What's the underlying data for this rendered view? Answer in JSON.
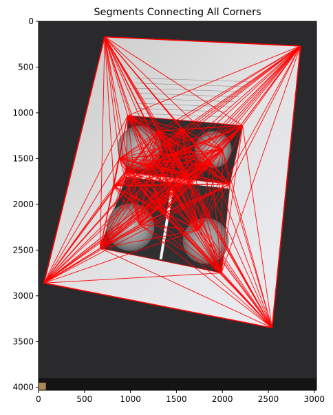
{
  "chart_data": {
    "type": "line",
    "title": "Segments Connecting All Corners",
    "xlabel": "",
    "ylabel": "",
    "xlim": [
      0,
      3024
    ],
    "ylim": [
      4032,
      0
    ],
    "y_inverted": true,
    "grid": false,
    "xticks": [
      0,
      500,
      1000,
      1500,
      2000,
      2500,
      3000
    ],
    "yticks": [
      0,
      500,
      1000,
      1500,
      2000,
      2500,
      3000,
      3500,
      4000
    ],
    "background": "photo",
    "segment_color": "#ff0000",
    "corners": [
      [
        720,
        170
      ],
      [
        2850,
        270
      ],
      [
        60,
        2860
      ],
      [
        2540,
        3350
      ],
      [
        970,
        1030
      ],
      [
        2220,
        1140
      ],
      [
        950,
        1650
      ],
      [
        2080,
        1780
      ],
      [
        670,
        2480
      ],
      [
        1990,
        2750
      ],
      [
        1300,
        1200
      ],
      [
        1560,
        1180
      ],
      [
        1420,
        1780
      ],
      [
        1350,
        2100
      ],
      [
        1620,
        1700
      ],
      [
        1200,
        1560
      ],
      [
        1880,
        1560
      ],
      [
        820,
        1800
      ],
      [
        1740,
        2280
      ],
      [
        1100,
        2220
      ],
      [
        1500,
        1450
      ],
      [
        2000,
        1400
      ],
      [
        880,
        1500
      ]
    ],
    "outline": [
      [
        720,
        170
      ],
      [
        2850,
        270
      ],
      [
        2540,
        3350
      ],
      [
        60,
        2860
      ]
    ]
  }
}
